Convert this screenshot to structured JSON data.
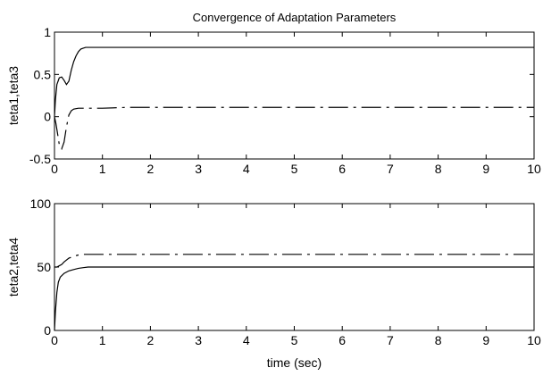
{
  "chart_data": [
    {
      "type": "line",
      "title": "Convergence of Adaptation Parameters",
      "xlabel": "",
      "ylabel": "teta1,teta3",
      "xlim": [
        0,
        10
      ],
      "ylim": [
        -0.5,
        1
      ],
      "xticks": [
        "0",
        "1",
        "2",
        "3",
        "4",
        "5",
        "6",
        "7",
        "8",
        "9",
        "10"
      ],
      "yticks": [
        "-0.5",
        "0",
        "0.5",
        "1"
      ],
      "ytick_values": [
        -0.5,
        0,
        0.5,
        1
      ],
      "grid": false,
      "line_color": "#000000",
      "series": [
        {
          "style": "solid",
          "x": [
            0,
            0.02,
            0.05,
            0.1,
            0.15,
            0.2,
            0.25,
            0.3,
            0.35,
            0.4,
            0.45,
            0.5,
            0.55,
            0.6,
            0.65,
            0.7,
            1,
            2,
            4,
            6,
            8,
            10
          ],
          "y": [
            0,
            0.2,
            0.38,
            0.46,
            0.47,
            0.43,
            0.38,
            0.42,
            0.55,
            0.65,
            0.72,
            0.77,
            0.8,
            0.81,
            0.82,
            0.82,
            0.82,
            0.82,
            0.82,
            0.82,
            0.82,
            0.82
          ]
        },
        {
          "style": "dashdot",
          "x": [
            0,
            0.03,
            0.07,
            0.1,
            0.15,
            0.2,
            0.25,
            0.3,
            0.35,
            0.4,
            0.5,
            0.6,
            0.8,
            1,
            1.5,
            2,
            4,
            6,
            8,
            10
          ],
          "y": [
            0,
            -0.08,
            -0.22,
            -0.33,
            -0.38,
            -0.3,
            -0.12,
            0.02,
            0.07,
            0.09,
            0.1,
            0.1,
            0.1,
            0.1,
            0.11,
            0.11,
            0.11,
            0.11,
            0.11,
            0.11
          ]
        }
      ]
    },
    {
      "type": "line",
      "title": "",
      "xlabel": "time (sec)",
      "ylabel": "teta2,teta4",
      "xlim": [
        0,
        10
      ],
      "ylim": [
        0,
        100
      ],
      "xticks": [
        "0",
        "1",
        "2",
        "3",
        "4",
        "5",
        "6",
        "7",
        "8",
        "9",
        "10"
      ],
      "yticks": [
        "0",
        "50",
        "100"
      ],
      "ytick_values": [
        0,
        50,
        100
      ],
      "grid": false,
      "line_color": "#000000",
      "series": [
        {
          "style": "solid",
          "x": [
            0,
            0.02,
            0.05,
            0.08,
            0.12,
            0.2,
            0.3,
            0.4,
            0.5,
            0.6,
            0.7,
            1,
            2,
            4,
            6,
            8,
            10
          ],
          "y": [
            0,
            15,
            30,
            38,
            42,
            45,
            47,
            48,
            49,
            49.5,
            50,
            50,
            50,
            50,
            50,
            50,
            50
          ]
        },
        {
          "style": "dashdot",
          "x": [
            0,
            0.05,
            0.1,
            0.15,
            0.2,
            0.3,
            0.4,
            0.5,
            0.6,
            0.8,
            1,
            2,
            4,
            6,
            8,
            10
          ],
          "y": [
            50,
            50,
            51,
            52,
            54,
            57,
            58.5,
            59.5,
            60,
            60,
            60,
            60,
            60,
            60,
            60,
            60
          ]
        }
      ]
    }
  ]
}
